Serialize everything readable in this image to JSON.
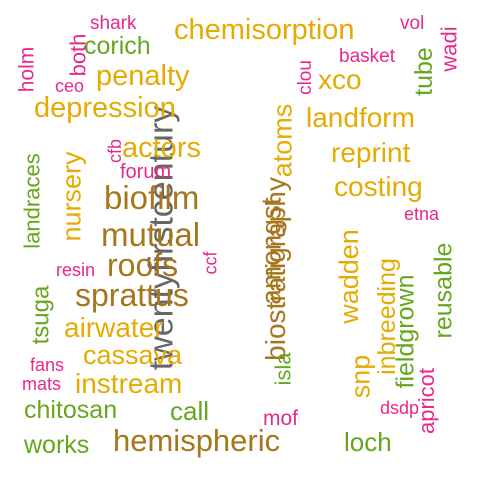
{
  "colors": {
    "gold": "#e6ab02",
    "brown": "#a6761d",
    "green": "#66a61e",
    "pink": "#e7298a",
    "gray": "#666666"
  },
  "words": [
    {
      "id": "twentyfirstcentury",
      "text": "twentyfirstcentury",
      "color": "gray",
      "vertical": true
    },
    {
      "id": "hemispheric",
      "text": "hemispheric",
      "color": "brown",
      "vertical": false
    },
    {
      "id": "biostratigraphy",
      "text": "biostratigraphy",
      "color": "brown",
      "vertical": true
    },
    {
      "id": "chemisorption",
      "text": "chemisorption",
      "color": "gold",
      "vertical": false
    },
    {
      "id": "mutual",
      "text": "mutual",
      "color": "brown",
      "vertical": false
    },
    {
      "id": "biofilm",
      "text": "biofilm",
      "color": "brown",
      "vertical": false
    },
    {
      "id": "sprattus",
      "text": "sprattus",
      "color": "brown",
      "vertical": false
    },
    {
      "id": "roofs",
      "text": "roofs",
      "color": "brown",
      "vertical": false
    },
    {
      "id": "depression",
      "text": "depression",
      "color": "gold",
      "vertical": false
    },
    {
      "id": "landform",
      "text": "landform",
      "color": "gold",
      "vertical": false
    },
    {
      "id": "amongst",
      "text": "amongst",
      "color": "brown",
      "vertical": true
    },
    {
      "id": "wadden",
      "text": "wadden",
      "color": "gold",
      "vertical": true
    },
    {
      "id": "actors",
      "text": "actors",
      "color": "gold",
      "vertical": false
    },
    {
      "id": "reprint",
      "text": "reprint",
      "color": "gold",
      "vertical": false
    },
    {
      "id": "costing",
      "text": "costing",
      "color": "gold",
      "vertical": false
    },
    {
      "id": "penalty",
      "text": "penalty",
      "color": "gold",
      "vertical": false
    },
    {
      "id": "nursery",
      "text": "nursery",
      "color": "gold",
      "vertical": true
    },
    {
      "id": "airwater",
      "text": "airwater",
      "color": "gold",
      "vertical": false
    },
    {
      "id": "cassava",
      "text": "cassava",
      "color": "gold",
      "vertical": false
    },
    {
      "id": "instream",
      "text": "instream",
      "color": "gold",
      "vertical": false
    },
    {
      "id": "inbreeding",
      "text": "inbreeding",
      "color": "gold",
      "vertical": true
    },
    {
      "id": "atoms",
      "text": "atoms",
      "color": "gold",
      "vertical": true
    },
    {
      "id": "snp",
      "text": "snp",
      "color": "gold",
      "vertical": true
    },
    {
      "id": "xco",
      "text": "xco",
      "color": "gold",
      "vertical": false
    },
    {
      "id": "fieldgrown",
      "text": "fieldgrown",
      "color": "green",
      "vertical": true
    },
    {
      "id": "reusable",
      "text": "reusable",
      "color": "green",
      "vertical": true
    },
    {
      "id": "landraces",
      "text": "landraces",
      "color": "green",
      "vertical": true
    },
    {
      "id": "chitosan",
      "text": "chitosan",
      "color": "green",
      "vertical": false
    },
    {
      "id": "works",
      "text": "works",
      "color": "green",
      "vertical": false
    },
    {
      "id": "corich",
      "text": "corich",
      "color": "green",
      "vertical": false
    },
    {
      "id": "loch",
      "text": "loch",
      "color": "green",
      "vertical": false
    },
    {
      "id": "call",
      "text": "call",
      "color": "green",
      "vertical": false
    },
    {
      "id": "tsuga",
      "text": "tsuga",
      "color": "green",
      "vertical": true
    },
    {
      "id": "tube",
      "text": "tube",
      "color": "green",
      "vertical": true
    },
    {
      "id": "isla",
      "text": "isla",
      "color": "green",
      "vertical": true
    },
    {
      "id": "apricot",
      "text": "apricot",
      "color": "pink",
      "vertical": true
    },
    {
      "id": "holm",
      "text": "holm",
      "color": "pink",
      "vertical": true
    },
    {
      "id": "both",
      "text": "both",
      "color": "pink",
      "vertical": true
    },
    {
      "id": "wadi",
      "text": "wadi",
      "color": "pink",
      "vertical": true
    },
    {
      "id": "forum",
      "text": "forum",
      "color": "pink",
      "vertical": false
    },
    {
      "id": "mof",
      "text": "mof",
      "color": "pink",
      "vertical": false
    },
    {
      "id": "shark",
      "text": "shark",
      "color": "pink",
      "vertical": false
    },
    {
      "id": "basket",
      "text": "basket",
      "color": "pink",
      "vertical": false
    },
    {
      "id": "vol",
      "text": "vol",
      "color": "pink",
      "vertical": false
    },
    {
      "id": "ceo",
      "text": "ceo",
      "color": "pink",
      "vertical": false
    },
    {
      "id": "clou",
      "text": "clou",
      "color": "pink",
      "vertical": true
    },
    {
      "id": "cfb",
      "text": "cfb",
      "color": "pink",
      "vertical": true
    },
    {
      "id": "etna",
      "text": "etna",
      "color": "pink",
      "vertical": false
    },
    {
      "id": "resin",
      "text": "resin",
      "color": "pink",
      "vertical": false
    },
    {
      "id": "ccf",
      "text": "ccf",
      "color": "pink",
      "vertical": true
    },
    {
      "id": "fans",
      "text": "fans",
      "color": "pink",
      "vertical": false
    },
    {
      "id": "mats",
      "text": "mats",
      "color": "pink",
      "vertical": false
    },
    {
      "id": "dsdp",
      "text": "dsdp",
      "color": "pink",
      "vertical": false
    }
  ]
}
